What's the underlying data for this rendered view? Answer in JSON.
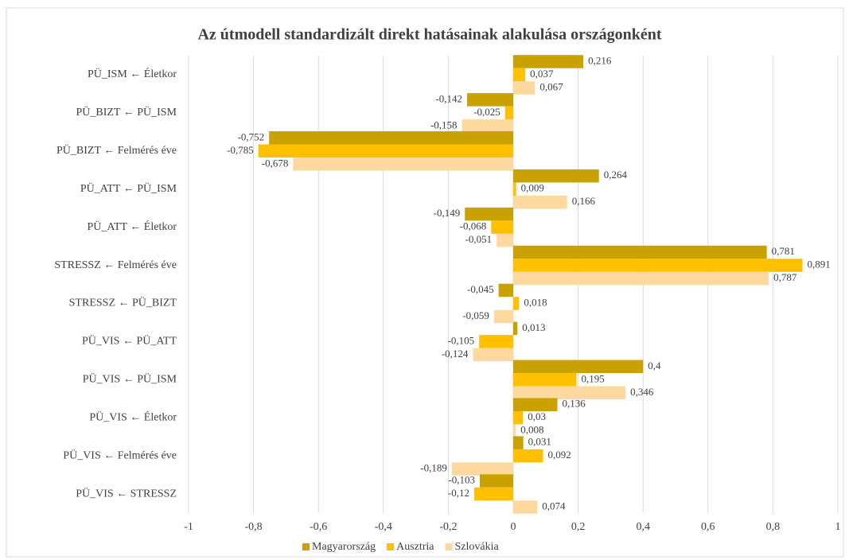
{
  "chart_data": {
    "type": "barh",
    "title": "Az útmodell standardizált direkt hatásainak alakulása országonként",
    "categories": [
      "PÜ_ISM ← Életkor",
      "PÜ_BIZT ← PÜ_ISM",
      "PÜ_BIZT ← Felmérés éve",
      "PÜ_ATT ← PÜ_ISM",
      "PÜ_ATT ← Életkor",
      "STRESSZ ← Felmérés éve",
      "STRESSZ ← PÜ_BIZT",
      "PÜ_VIS ← PÜ_ATT",
      "PÜ_VIS ← PÜ_ISM",
      "PÜ_VIS ← Életkor",
      "PÜ_VIS ← Felmérés éve",
      "PÜ_VIS ← STRESSZ"
    ],
    "series": [
      {
        "name": "Magyarország",
        "color": "#c9a100",
        "values": [
          0.216,
          -0.142,
          -0.752,
          0.264,
          -0.149,
          0.781,
          -0.045,
          0.013,
          0.4,
          0.136,
          0.031,
          -0.103
        ],
        "value_labels": [
          "0,216",
          "-0,142",
          "-0,752",
          "0,264",
          "-0,149",
          "0,781",
          "-0,045",
          "0,013",
          "0,4",
          "0,136",
          "0,031",
          "-0,103"
        ]
      },
      {
        "name": "Ausztria",
        "color": "#ffc000",
        "values": [
          0.037,
          -0.025,
          -0.785,
          0.009,
          -0.068,
          0.891,
          0.018,
          -0.105,
          0.195,
          0.03,
          0.092,
          -0.12
        ],
        "value_labels": [
          "0,037",
          "-0,025",
          "-0,785",
          "0,009",
          "-0,068",
          "0,891",
          "0,018",
          "-0,105",
          "0,195",
          "0,03",
          "0,092",
          "-0,12"
        ]
      },
      {
        "name": "Szlovákia",
        "color": "#fdd9a0",
        "values": [
          0.067,
          -0.158,
          -0.678,
          0.166,
          -0.051,
          0.787,
          -0.059,
          -0.124,
          0.346,
          0.008,
          -0.189,
          0.074
        ],
        "value_labels": [
          "0,067",
          "-0,158",
          "-0,678",
          "0,166",
          "-0,051",
          "0,787",
          "-0,059",
          "-0,124",
          "0,346",
          "0,008",
          "-0,189",
          "0,074"
        ]
      }
    ],
    "xlim": [
      -1,
      1
    ],
    "xticks": [
      -1,
      {
        "value": -0.8,
        "label": "-0,8"
      },
      {
        "value": -0.6,
        "label": "-0,6"
      },
      {
        "value": -0.4,
        "label": "-0,4"
      },
      {
        "value": -0.2,
        "label": "-0,2"
      },
      0,
      {
        "value": 0.2,
        "label": "0,2"
      },
      {
        "value": 0.4,
        "label": "0,4"
      },
      {
        "value": 0.6,
        "label": "0,6"
      },
      {
        "value": 0.8,
        "label": "0,8"
      },
      1
    ],
    "grid": true,
    "legend": "bottom"
  }
}
